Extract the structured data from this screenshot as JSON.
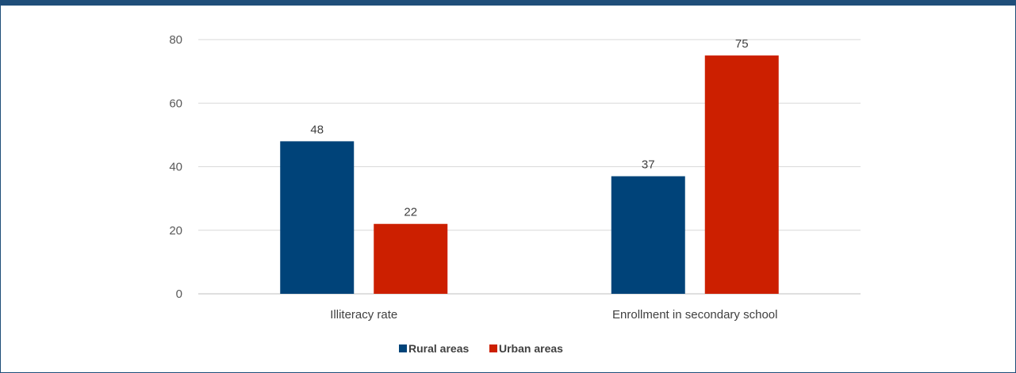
{
  "chart_data": {
    "type": "bar",
    "categories": [
      "Illiteracy rate",
      "Enrollment in secondary school"
    ],
    "series": [
      {
        "name": "Rural areas",
        "values": [
          48,
          37
        ],
        "color": "#004379"
      },
      {
        "name": "Urban areas",
        "values": [
          22,
          75
        ],
        "color": "#cc1f00"
      }
    ],
    "ylim": [
      0,
      80
    ],
    "yticks": [
      0,
      20,
      40,
      60,
      80
    ],
    "grid": true,
    "legend": "bottom",
    "data_labels": true
  }
}
